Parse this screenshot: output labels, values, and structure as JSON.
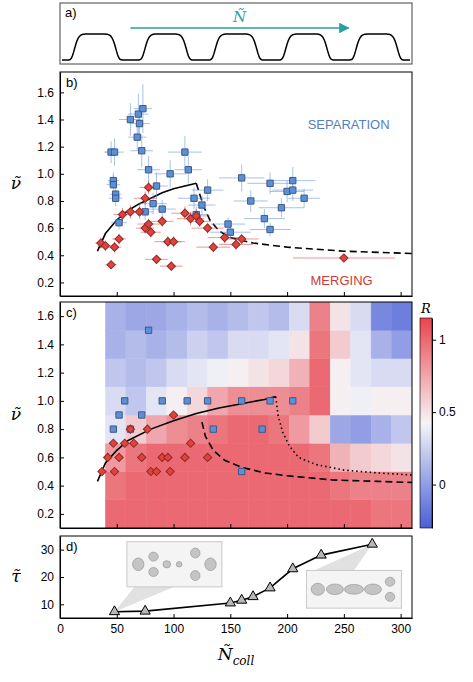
{
  "schematic": {
    "panel_label": "a)",
    "arrow_label": "Ñ",
    "color": "#2b9ea3"
  },
  "chart_data": [
    {
      "type": "scatter",
      "panel_label": "b)",
      "y_label": "ν̃",
      "xlim": [
        0,
        310
      ],
      "xticks": [
        0,
        50,
        100,
        150,
        200,
        250,
        300
      ],
      "ylim": [
        0.1,
        1.75
      ],
      "yticks": [
        0.2,
        0.4,
        0.6,
        0.8,
        {
          "value": 1,
          "label": "1.0"
        },
        1.2,
        1.4,
        1.6
      ],
      "tick_labels": "y",
      "series": [
        {
          "name": "SEPARATION",
          "type": "scatter",
          "marker": "square",
          "color": "#5d8fd6",
          "x": [
            45,
            48,
            47,
            47,
            49,
            49,
            52,
            62,
            68,
            69,
            73,
            70,
            72,
            75,
            78,
            82,
            85,
            90,
            97,
            110,
            113,
            118,
            120,
            125,
            130,
            148,
            150,
            160,
            168,
            180,
            185,
            185,
            195,
            200,
            205,
            205,
            215
          ],
          "values": [
            1.16,
            1.16,
            0.95,
            0.92,
            0.85,
            0.82,
            0.64,
            1.4,
            1.27,
            1.44,
            1.48,
            1.37,
            1.17,
            0.72,
            1.03,
            0.78,
            0.91,
            0.74,
            1.0,
            1.16,
            1.03,
            0.82,
            0.7,
            0.77,
            0.88,
            0.63,
            0.57,
            0.97,
            0.8,
            0.67,
            0.93,
            0.59,
            0.75,
            0.87,
            0.88,
            0.95,
            0.82
          ],
          "x_err": [
            6,
            8,
            5,
            6,
            5,
            6,
            7,
            10,
            8,
            9,
            8,
            9,
            10,
            7,
            10,
            12,
            10,
            12,
            14,
            15,
            12,
            14,
            10,
            12,
            14,
            15,
            18,
            20,
            15,
            18,
            20,
            18,
            20,
            15,
            18,
            20,
            14
          ],
          "y_err": [
            0.08,
            0.1,
            0.06,
            0.07,
            0.05,
            0.06,
            0.05,
            0.12,
            0.1,
            0.15,
            0.18,
            0.1,
            0.12,
            0.06,
            0.1,
            0.08,
            0.1,
            0.07,
            0.1,
            0.12,
            0.1,
            0.08,
            0.06,
            0.07,
            0.08,
            0.05,
            0.05,
            0.1,
            0.08,
            0.07,
            0.08,
            0.05,
            0.07,
            0.08,
            0.08,
            0.1,
            0.07
          ]
        },
        {
          "name": "MERGING",
          "type": "scatter",
          "marker": "diamond",
          "color": "#e2423c",
          "x": [
            36,
            40,
            45,
            48,
            52,
            55,
            62,
            70,
            75,
            78,
            75,
            78,
            80,
            85,
            90,
            95,
            98,
            100,
            110,
            115,
            120,
            123,
            130,
            135,
            145,
            155,
            160,
            250
          ],
          "values": [
            0.49,
            0.47,
            0.33,
            0.46,
            0.52,
            0.7,
            0.72,
            0.72,
            0.82,
            0.9,
            0.6,
            0.63,
            0.57,
            0.37,
            0.65,
            0.5,
            0.32,
            0.5,
            0.71,
            0.67,
            0.69,
            0.65,
            0.6,
            0.46,
            0.53,
            0.48,
            0.52,
            0.38
          ],
          "x_err": [
            5,
            6,
            5,
            6,
            6,
            8,
            8,
            8,
            10,
            8,
            8,
            10,
            9,
            10,
            10,
            12,
            10,
            10,
            12,
            12,
            12,
            10,
            14,
            15,
            15,
            15,
            15,
            45
          ],
          "y_err": [
            0.04,
            0.04,
            0.03,
            0.04,
            0.04,
            0.05,
            0.05,
            0.05,
            0.05,
            0.05,
            0.04,
            0.04,
            0.04,
            0.03,
            0.04,
            0.04,
            0.03,
            0.04,
            0.05,
            0.05,
            0.05,
            0.04,
            0.04,
            0.04,
            0.04,
            0.04,
            0.04,
            0.03
          ]
        },
        {
          "type": "line",
          "line_style": "solid",
          "color": "#000000",
          "x": [
            33,
            40,
            50,
            60,
            70,
            80,
            90,
            100,
            110,
            120
          ],
          "values": [
            0.43,
            0.56,
            0.66,
            0.73,
            0.78,
            0.82,
            0.86,
            0.89,
            0.91,
            0.93
          ]
        },
        {
          "type": "line",
          "line_style": "dashed",
          "color": "#000000",
          "x": [
            120,
            123,
            127,
            132,
            140,
            150,
            170,
            200,
            250,
            320
          ],
          "values": [
            0.93,
            0.85,
            0.75,
            0.66,
            0.58,
            0.53,
            0.49,
            0.46,
            0.43,
            0.41
          ]
        }
      ]
    },
    {
      "type": "heatmap",
      "panel_label": "c)",
      "y_label": "ν̃",
      "xlim": [
        0,
        310
      ],
      "xticks": [
        0,
        50,
        100,
        150,
        200,
        250,
        300
      ],
      "ylim": [
        0.1,
        1.7
      ],
      "yticks": [
        0.2,
        0.4,
        0.6,
        0.8,
        {
          "value": 1,
          "label": "1.0"
        },
        1.2,
        1.4,
        1.6
      ],
      "tick_labels": "y",
      "x_edges": [
        40,
        58,
        76,
        94,
        112,
        130,
        148,
        166,
        184,
        202,
        220,
        238,
        256,
        274,
        292,
        310
      ],
      "y_edges": [
        0.1,
        0.3,
        0.5,
        0.7,
        0.9,
        1.1,
        1.3,
        1.5,
        1.7
      ],
      "cells": [
        [
          1.0,
          1.0,
          1.0,
          1.0,
          1.0,
          1.0,
          1.0,
          1.0,
          1.0,
          1.0,
          1.0,
          1.0,
          1.0,
          0.95,
          0.95
        ],
        [
          0.95,
          1.0,
          1.0,
          1.0,
          1.0,
          1.0,
          1.0,
          1.0,
          1.0,
          1.0,
          1.0,
          0.95,
          0.9,
          0.9,
          0.9
        ],
        [
          0.8,
          0.95,
          1.0,
          1.0,
          1.0,
          1.0,
          1.0,
          1.0,
          1.0,
          1.0,
          0.95,
          0.7,
          0.6,
          0.55,
          0.5
        ],
        [
          0.35,
          0.6,
          0.75,
          0.85,
          0.9,
          0.95,
          1.0,
          1.0,
          0.95,
          0.8,
          0.6,
          0.05,
          0.0,
          0.1,
          0.2
        ],
        [
          0.3,
          0.2,
          0.35,
          0.45,
          0.55,
          0.75,
          0.85,
          0.85,
          0.85,
          0.9,
          1.0,
          0.45,
          0.4,
          0.45,
          0.45
        ],
        [
          0.2,
          0.15,
          0.2,
          0.3,
          0.35,
          0.4,
          0.45,
          0.5,
          0.55,
          0.7,
          1.0,
          0.45,
          0.35,
          0.3,
          0.3
        ],
        [
          0.1,
          0.15,
          0.1,
          0.15,
          0.25,
          0.2,
          0.3,
          0.3,
          0.35,
          0.5,
          0.95,
          0.6,
          0.35,
          0.1,
          0.0
        ],
        [
          0.1,
          0.05,
          0.05,
          0.1,
          0.15,
          0.1,
          0.15,
          0.2,
          0.15,
          0.3,
          0.9,
          0.5,
          0.3,
          -0.1,
          -0.15
        ]
      ],
      "colorbar": {
        "label": "R",
        "range": [
          -0.3,
          1.15
        ],
        "ticks": [
          0,
          0.5,
          1
        ],
        "colors": [
          "#4a5fd6",
          "#f5f5f7",
          "#e8454f"
        ]
      },
      "series": [
        {
          "type": "scatter",
          "marker": "square",
          "color": "#5d8fd6",
          "x": [
            78,
            47,
            52,
            57,
            62,
            72,
            90,
            112,
            130,
            135,
            160,
            160,
            178,
            185,
            205
          ],
          "values": [
            1.5,
            0.8,
            0.9,
            1.0,
            0.8,
            0.9,
            1.0,
            1.0,
            1.0,
            0.8,
            1.0,
            0.5,
            0.8,
            1.0,
            1.0
          ]
        },
        {
          "type": "scatter",
          "marker": "diamond",
          "color": "#e2423c",
          "x": [
            37,
            42,
            47,
            48,
            52,
            57,
            62,
            65,
            72,
            77,
            80,
            85,
            90,
            95,
            97,
            100,
            110,
            115,
            130
          ],
          "values": [
            0.5,
            0.6,
            0.7,
            0.5,
            0.6,
            0.7,
            0.8,
            0.7,
            0.6,
            0.8,
            0.5,
            0.5,
            0.6,
            0.6,
            0.5,
            0.9,
            0.6,
            0.7,
            0.6
          ]
        },
        {
          "type": "line",
          "line_style": "solid",
          "color": "#000000",
          "x": [
            33,
            40,
            50,
            60,
            80,
            100,
            120,
            140,
            160,
            180,
            190
          ],
          "values": [
            0.43,
            0.56,
            0.65,
            0.72,
            0.8,
            0.86,
            0.91,
            0.95,
            0.98,
            1.01,
            1.03
          ]
        },
        {
          "type": "line",
          "line_style": "dashed",
          "color": "#000000",
          "x": [
            125,
            128,
            135,
            145,
            160,
            180,
            200,
            240,
            280,
            320
          ],
          "values": [
            0.85,
            0.75,
            0.65,
            0.58,
            0.53,
            0.49,
            0.47,
            0.44,
            0.43,
            0.42
          ]
        },
        {
          "type": "line",
          "line_style": "dotted",
          "color": "#000000",
          "x": [
            190,
            192,
            196,
            202,
            210,
            225,
            250,
            280,
            320
          ],
          "values": [
            1.03,
            0.9,
            0.78,
            0.68,
            0.6,
            0.55,
            0.51,
            0.49,
            0.47
          ]
        }
      ]
    },
    {
      "type": "line",
      "panel_label": "d)",
      "x_label": {
        "base": "Ñ",
        "sub": "coll"
      },
      "y_label": "τ̃",
      "xlim": [
        0,
        310
      ],
      "xticks": [
        0,
        50,
        100,
        150,
        200,
        250,
        300
      ],
      "ylim": [
        5,
        35
      ],
      "yticks": [
        10,
        20,
        30
      ],
      "series": [
        {
          "type": "line",
          "marker": "triangle",
          "line_style": "solid",
          "color": "#000000",
          "x": [
            48,
            75,
            150,
            160,
            170,
            185,
            205,
            230,
            275
          ],
          "values": [
            7.3,
            7.5,
            10.5,
            11.5,
            12.8,
            16,
            23,
            28,
            32
          ]
        }
      ]
    }
  ]
}
